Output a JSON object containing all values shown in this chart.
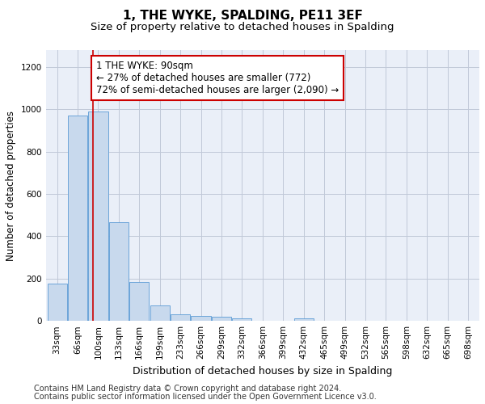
{
  "title": "1, THE WYKE, SPALDING, PE11 3EF",
  "subtitle": "Size of property relative to detached houses in Spalding",
  "xlabel": "Distribution of detached houses by size in Spalding",
  "ylabel": "Number of detached properties",
  "footnote1": "Contains HM Land Registry data © Crown copyright and database right 2024.",
  "footnote2": "Contains public sector information licensed under the Open Government Licence v3.0.",
  "bar_color": "#c8d9ed",
  "bar_edge_color": "#5b9bd5",
  "grid_color": "#c0c8d8",
  "annotation_box_color": "#cc0000",
  "vline_color": "#cc0000",
  "categories": [
    "33sqm",
    "66sqm",
    "100sqm",
    "133sqm",
    "166sqm",
    "199sqm",
    "233sqm",
    "266sqm",
    "299sqm",
    "332sqm",
    "366sqm",
    "399sqm",
    "432sqm",
    "465sqm",
    "499sqm",
    "532sqm",
    "565sqm",
    "598sqm",
    "632sqm",
    "665sqm",
    "698sqm"
  ],
  "values": [
    175,
    970,
    990,
    465,
    185,
    75,
    30,
    22,
    20,
    12,
    0,
    0,
    13,
    0,
    0,
    0,
    0,
    0,
    0,
    0,
    0
  ],
  "property_bin_index": 1.75,
  "annotation_text": "1 THE WYKE: 90sqm\n← 27% of detached houses are smaller (772)\n72% of semi-detached houses are larger (2,090) →",
  "ylim": [
    0,
    1280
  ],
  "yticks": [
    0,
    200,
    400,
    600,
    800,
    1000,
    1200
  ],
  "title_fontsize": 11,
  "subtitle_fontsize": 9.5,
  "annotation_fontsize": 8.5,
  "tick_fontsize": 7.5,
  "ylabel_fontsize": 8.5,
  "xlabel_fontsize": 9,
  "footer_fontsize": 7
}
